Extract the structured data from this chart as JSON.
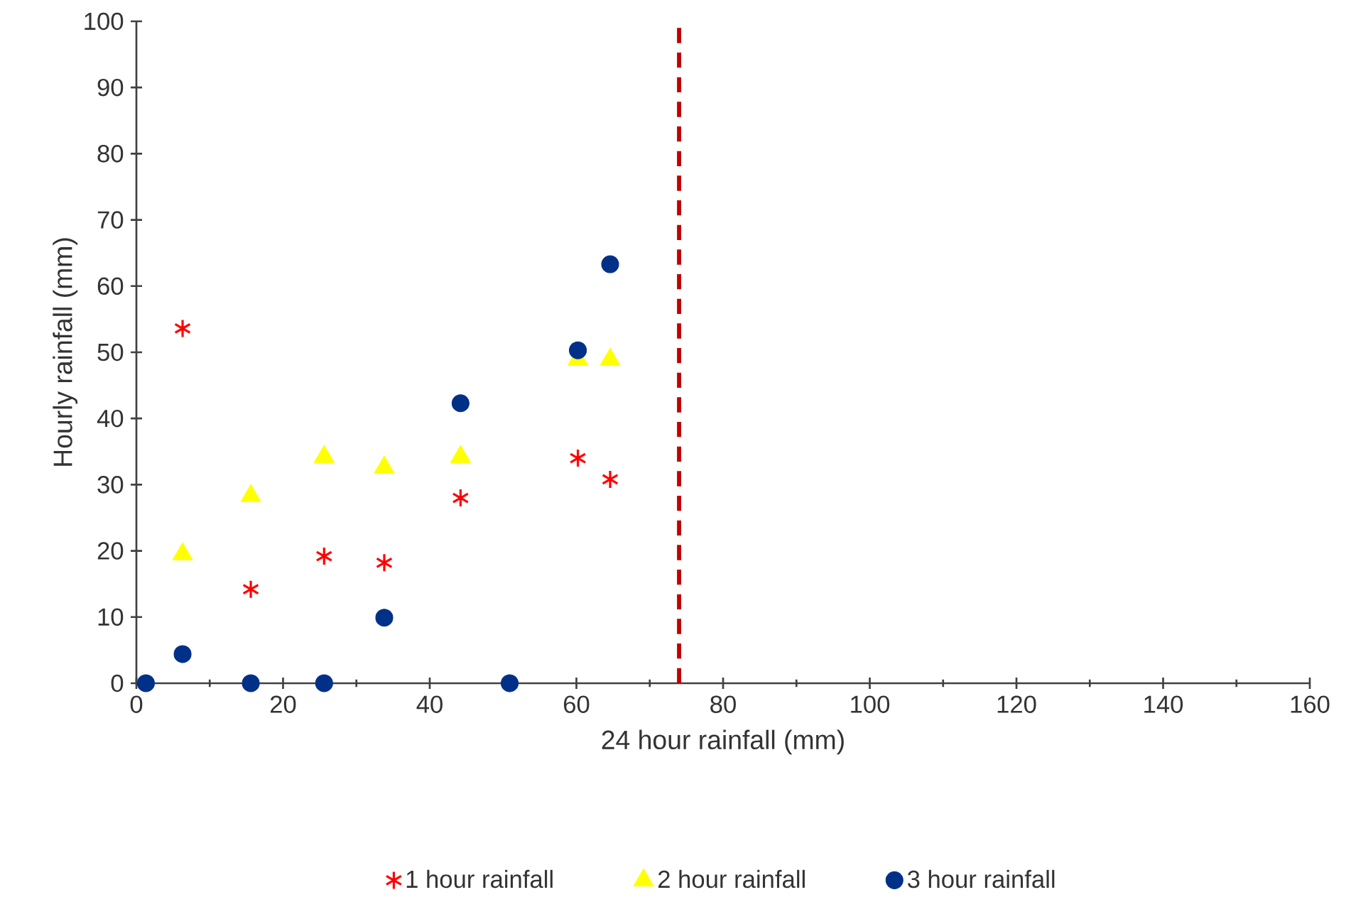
{
  "chart_data": {
    "type": "scatter",
    "xlabel": "24 hour rainfall (mm)",
    "ylabel": "Hourly rainfall (mm)",
    "xlim": [
      0,
      160
    ],
    "ylim": [
      0,
      100
    ],
    "xticks": [
      0,
      20,
      40,
      60,
      80,
      100,
      120,
      140,
      160
    ],
    "yticks": [
      0,
      10,
      20,
      30,
      40,
      50,
      60,
      70,
      80,
      90,
      100
    ],
    "grid": false,
    "legend": "bottom",
    "x": [
      1.3,
      6.3,
      15.6,
      25.6,
      33.8,
      44.2,
      50.9,
      60.2,
      64.6
    ],
    "series": [
      {
        "name": "1 hour rainfall",
        "color": "#ff0000",
        "marker": "cross",
        "values": [
          0,
          53.6,
          14.2,
          19.2,
          18.2,
          28.0,
          0,
          34.0,
          30.8
        ]
      },
      {
        "name": "2 hour rainfall",
        "color": "#ffff00",
        "marker": "triangle",
        "values": [
          null,
          19.5,
          28.3,
          34.2,
          32.6,
          34.2,
          null,
          48.9,
          48.9
        ]
      },
      {
        "name": "3 hour rainfall",
        "color": "#003087",
        "marker": "circle",
        "values": [
          0,
          4.4,
          0,
          0,
          9.9,
          42.3,
          0,
          50.3,
          63.3
        ]
      }
    ],
    "ref_lines": [
      {
        "axis": "x",
        "value": 74.0,
        "color": "#c00000",
        "line_style": "dashed"
      }
    ]
  }
}
